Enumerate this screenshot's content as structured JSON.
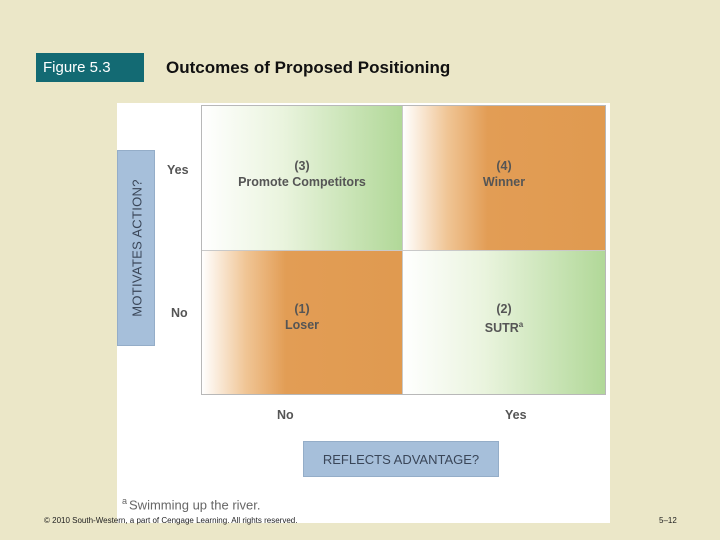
{
  "header": {
    "figure_label": "Figure 5.3",
    "title": "Outcomes of Proposed Positioning"
  },
  "axes": {
    "y_label": "MOTIVATES ACTION?",
    "y_ticks": [
      "Yes",
      "No"
    ],
    "x_label": "REFLECTS ADVANTAGE?",
    "x_ticks": [
      "No",
      "Yes"
    ]
  },
  "quadrants": {
    "q3": {
      "number": "(3)",
      "label": "Promote Competitors",
      "color": "green"
    },
    "q4": {
      "number": "(4)",
      "label": "Winner",
      "color": "orange"
    },
    "q1": {
      "number": "(1)",
      "label": "Loser",
      "color": "orange"
    },
    "q2": {
      "number": "(2)",
      "label": "SUTR",
      "marker": "a",
      "color": "green"
    }
  },
  "footnote": {
    "marker": "a",
    "text": "Swimming up the river."
  },
  "footer": {
    "copyright": "© 2010 South-Western, a part of Cengage Learning. All rights reserved.",
    "page": "5–12"
  },
  "colors": {
    "background": "#ebe7c8",
    "badge": "#136a73",
    "axis_label_box": "#a6bfda",
    "orange_fill": "#e09a50",
    "green_fill": "#b1d898"
  }
}
